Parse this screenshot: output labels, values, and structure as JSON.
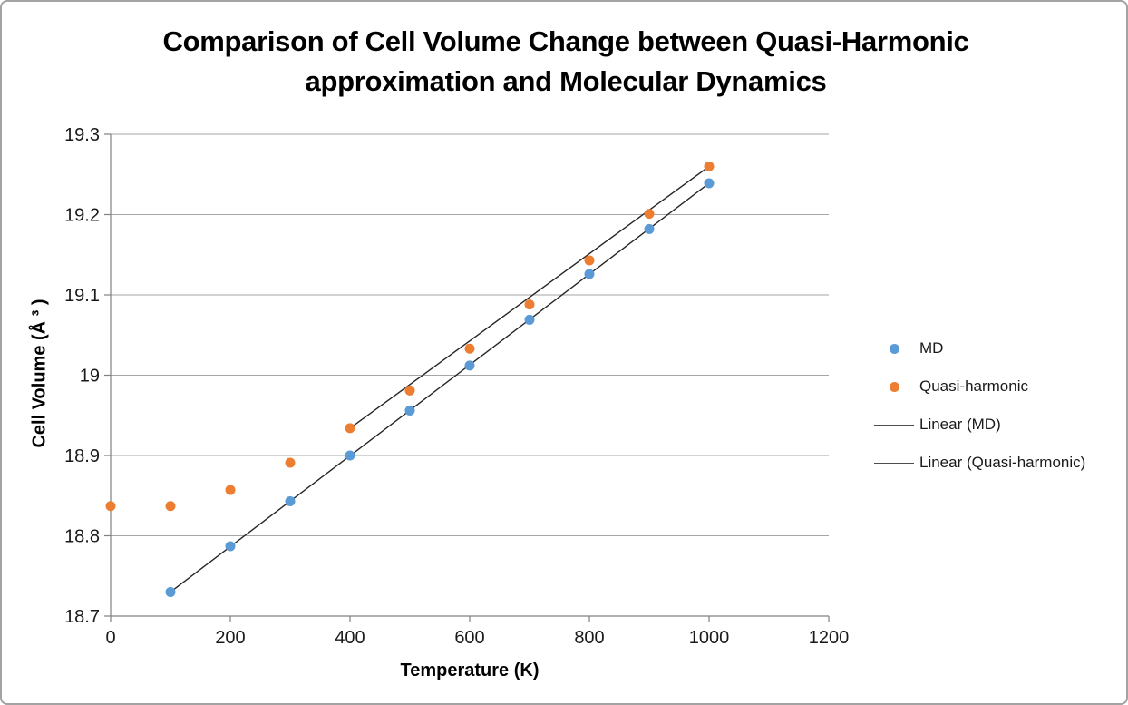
{
  "title_lines": [
    "Comparison of Cell Volume Change between Quasi-Harmonic",
    "approximation and Molecular Dynamics"
  ],
  "chart_data": {
    "type": "scatter",
    "title": "Comparison of Cell Volume Change between Quasi-Harmonic approximation and Molecular Dynamics",
    "xlabel": "Temperature (K)",
    "ylabel": "Cell Volume (Å ³ )",
    "xlim": [
      0,
      1200
    ],
    "ylim": [
      18.7,
      19.3
    ],
    "xticks": [
      0,
      200,
      400,
      600,
      800,
      1000,
      1200
    ],
    "xtick_labels": [
      "0",
      "200",
      "400",
      "600",
      "800",
      "1000",
      "1200"
    ],
    "yticks": [
      18.7,
      18.8,
      18.9,
      19,
      19.1,
      19.2,
      19.3
    ],
    "ytick_labels": [
      "18.7",
      "18.8",
      "18.9",
      "19",
      "19.1",
      "19.2",
      "19.3"
    ],
    "grid": "horizontal",
    "legend_position": "right",
    "series": [
      {
        "name": "MD",
        "marker": "circle",
        "color": "#5B9BD5",
        "x": [
          100,
          200,
          300,
          400,
          500,
          600,
          700,
          800,
          900,
          1000
        ],
        "y": [
          18.73,
          18.787,
          18.843,
          18.9,
          18.956,
          19.012,
          19.069,
          19.126,
          19.182,
          19.239
        ]
      },
      {
        "name": "Quasi-harmonic",
        "marker": "circle",
        "color": "#ED7D31",
        "x": [
          0,
          100,
          200,
          300,
          400,
          500,
          600,
          700,
          800,
          900,
          1000
        ],
        "y": [
          18.837,
          18.837,
          18.857,
          18.891,
          18.934,
          18.981,
          19.033,
          19.088,
          19.143,
          19.201,
          19.26
        ]
      }
    ],
    "trendlines": [
      {
        "name": "Linear (MD)",
        "color": "#262626",
        "x": [
          100,
          1000
        ],
        "y": [
          18.73,
          19.239
        ]
      },
      {
        "name": "Linear (Quasi-harmonic)",
        "color": "#262626",
        "x": [
          400,
          1000
        ],
        "y": [
          18.934,
          19.26
        ]
      }
    ],
    "legend": {
      "entries": [
        {
          "label": "MD",
          "type": "marker",
          "color": "#5B9BD5"
        },
        {
          "label": "Quasi-harmonic",
          "type": "marker",
          "color": "#ED7D31"
        },
        {
          "label": "Linear (MD)",
          "type": "line",
          "color": "#4d4d4d"
        },
        {
          "label": "Linear (Quasi-harmonic)",
          "type": "line",
          "color": "#4d4d4d"
        }
      ]
    },
    "colors": {
      "gridline": "#A6A6A6",
      "axis": "#808080",
      "tick_text": "#1a1a1a",
      "title_text": "#000000"
    }
  }
}
